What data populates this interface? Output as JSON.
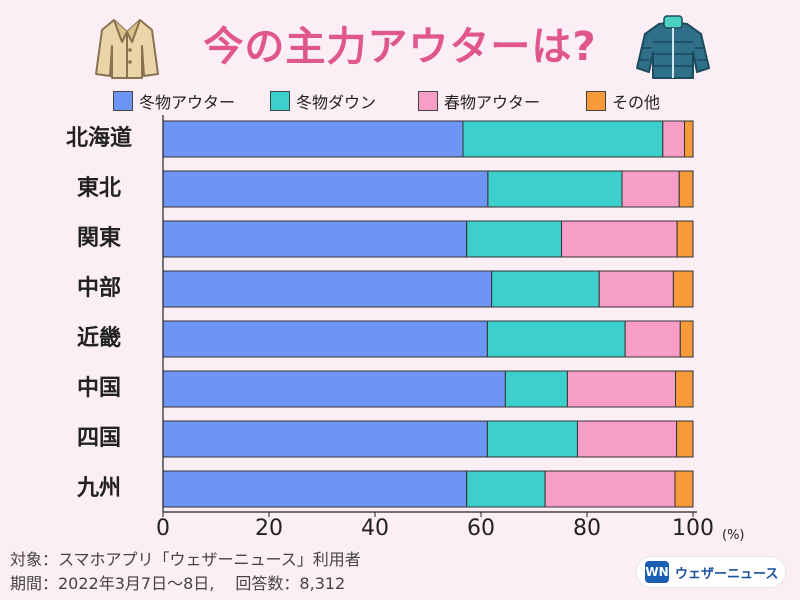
{
  "title": "今の主力アウターは?",
  "icons": {
    "left": "coat-icon",
    "right": "down-jacket-icon"
  },
  "footnote": {
    "line1": "対象：スマホアプリ「ウェザーニュース」利用者",
    "line2": "期間：2022年3月7日〜8日,　 回答数：8,312"
  },
  "logo": {
    "mark": "WN",
    "text": "ウェザーニュース"
  },
  "unit_label": "(%)",
  "colors": {
    "winter_outer": "#6f95f4",
    "winter_down": "#3dcfcb",
    "spring_outer": "#f79ec6",
    "other": "#f79a3a"
  },
  "chart_data": {
    "type": "bar",
    "orientation": "horizontal",
    "stacked": true,
    "title": "今の主力アウターは?",
    "xlabel": "(%)",
    "ylabel": "",
    "xlim": [
      0,
      100
    ],
    "xticks": [
      "0",
      "20",
      "40",
      "60",
      "80",
      "100"
    ],
    "categories": [
      "北海道",
      "東北",
      "関東",
      "中部",
      "近畿",
      "中国",
      "四国",
      "九州"
    ],
    "series": [
      {
        "name": "冬物アウター",
        "color": "#6f95f4",
        "values": [
          56.6,
          61.3,
          57.3,
          62.0,
          61.2,
          64.6,
          61.2,
          57.3
        ]
      },
      {
        "name": "冬物ダウン",
        "color": "#3dcfcb",
        "values": [
          37.7,
          25.3,
          17.9,
          20.3,
          26.0,
          11.7,
          17.0,
          14.8
        ]
      },
      {
        "name": "春物アウター",
        "color": "#f79ec6",
        "values": [
          4.1,
          10.8,
          21.8,
          14.0,
          10.4,
          20.4,
          18.7,
          24.5
        ]
      },
      {
        "name": "その他",
        "color": "#f79a3a",
        "values": [
          1.6,
          2.6,
          3.0,
          3.7,
          2.4,
          3.3,
          3.1,
          3.4
        ]
      }
    ],
    "legend_position": "top"
  }
}
